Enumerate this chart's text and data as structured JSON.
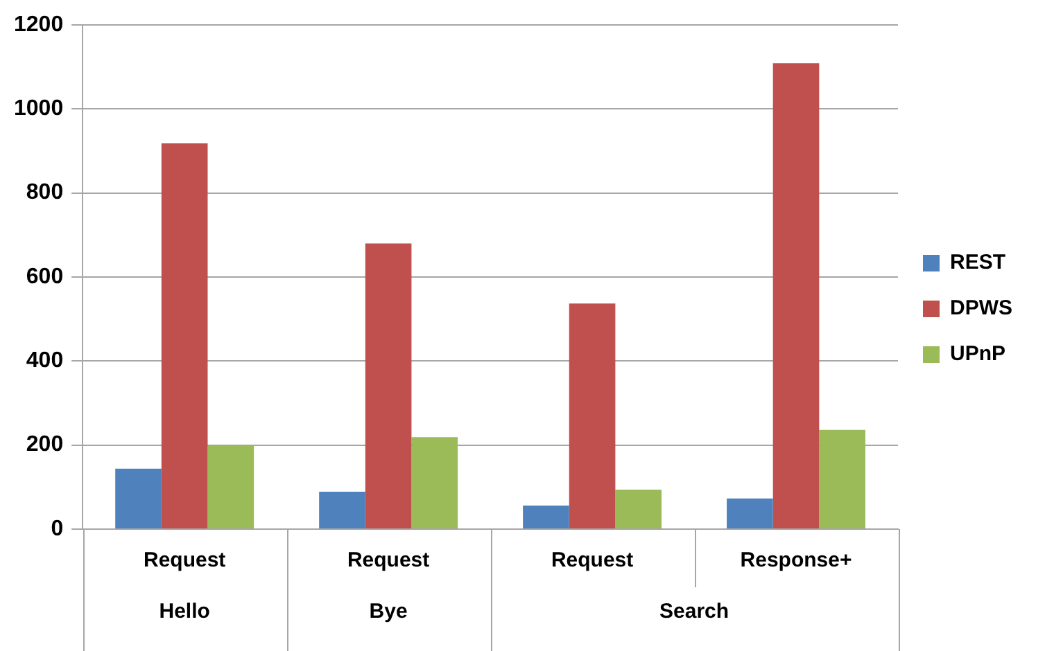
{
  "chart_data": {
    "type": "bar",
    "categories": [
      "Request",
      "Request",
      "Request",
      "Response+"
    ],
    "series": [
      {
        "name": "REST",
        "color": "#4f81bd",
        "values": [
          144,
          89,
          56,
          73
        ]
      },
      {
        "name": "DPWS",
        "color": "#c0504d",
        "values": [
          918,
          680,
          537,
          1109
        ]
      },
      {
        "name": "UPnP",
        "color": "#9bbb59",
        "values": [
          200,
          219,
          94,
          236
        ]
      }
    ],
    "annotations": [
      "Hello",
      "Bye",
      "Search"
    ],
    "ylim": [
      0,
      1200
    ],
    "yticks": [
      0,
      200,
      400,
      600,
      800,
      1000,
      1200
    ],
    "grid": "y",
    "legend": "right"
  }
}
